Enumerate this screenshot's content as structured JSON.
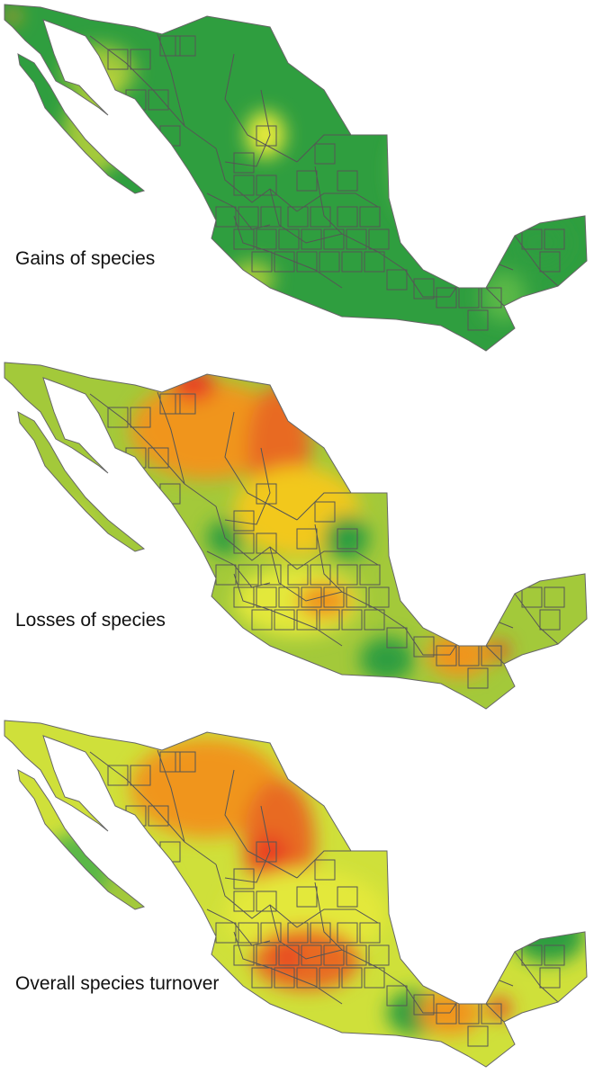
{
  "figure": {
    "panels": [
      {
        "caption": "Gains of species",
        "base_color": "#2f9e3f",
        "blobs": [
          {
            "color": "#a3c93a"
          },
          {
            "color": "#a3c93a"
          },
          {
            "color": "#e3e83a"
          },
          {
            "color": "#e3e83a"
          },
          {
            "color": "#f2a81f"
          },
          {
            "color": "#e84020"
          },
          {
            "color": "#5ab846"
          },
          {
            "color": "#5ab846"
          },
          {
            "color": "#e3e83a"
          },
          {
            "color": "#a3c93a"
          },
          {
            "color": "#2f9e3f"
          }
        ]
      },
      {
        "caption": "Losses of species",
        "base_color": "#a3c93a",
        "blobs": [
          {
            "color": "#f0951f"
          },
          {
            "color": "#e86a20"
          },
          {
            "color": "#e84020"
          },
          {
            "color": "#f2c81f"
          },
          {
            "color": "#2f9e3f"
          },
          {
            "color": "#2f9e3f"
          },
          {
            "color": "#e3e83a"
          },
          {
            "color": "#f0951f"
          },
          {
            "color": "#2f9e3f"
          },
          {
            "color": "#f0951f"
          },
          {
            "color": "#e84020"
          },
          {
            "color": "#e3e83a"
          }
        ]
      },
      {
        "caption": "Overall species turnover",
        "base_color": "#cfe03a",
        "blobs": [
          {
            "color": "#f0951f"
          },
          {
            "color": "#e86a20"
          },
          {
            "color": "#e84020"
          },
          {
            "color": "#e3e83a"
          },
          {
            "color": "#2f9e3f"
          },
          {
            "color": "#a3c93a"
          },
          {
            "color": "#e86a20"
          },
          {
            "color": "#e84020"
          },
          {
            "color": "#2f9e3f"
          },
          {
            "color": "#f0951f"
          },
          {
            "color": "#e84020"
          },
          {
            "color": "#5ab846"
          }
        ]
      }
    ],
    "grid_line_color": "#555555"
  }
}
